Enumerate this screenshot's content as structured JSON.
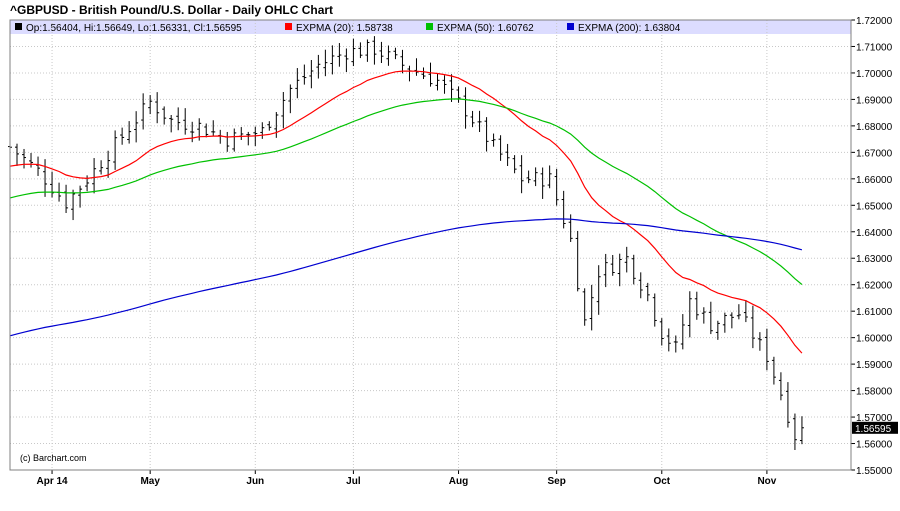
{
  "chart_data": {
    "type": "ohlc",
    "title": "^GBPUSD - British Pound/U.S. Dollar - Daily OHLC Chart",
    "credit": "(c) Barchart.com",
    "legend": {
      "ohlc": "Op:1.56404, Hi:1.56649, Lo:1.56331, Cl:1.56595",
      "series": [
        {
          "label": "EXPMA (20): 1.58738",
          "color": "#ff0000"
        },
        {
          "label": "EXPMA (50): 1.60762",
          "color": "#00c000"
        },
        {
          "label": "EXPMA (200): 1.63804",
          "color": "#0000d0"
        }
      ]
    },
    "last_price_label": "1.56595",
    "last_price": 1.56595,
    "ylim": [
      1.55,
      1.72
    ],
    "yticks": [
      "1.55000",
      "1.56000",
      "1.57000",
      "1.58000",
      "1.59000",
      "1.60000",
      "1.61000",
      "1.62000",
      "1.63000",
      "1.64000",
      "1.65000",
      "1.66000",
      "1.67000",
      "1.68000",
      "1.69000",
      "1.70000",
      "1.71000",
      "1.72000"
    ],
    "xticks": [
      {
        "label": "Apr 14",
        "day": 6
      },
      {
        "label": "May",
        "day": 20
      },
      {
        "label": "Jun",
        "day": 35
      },
      {
        "label": "Jul",
        "day": 49
      },
      {
        "label": "Aug",
        "day": 64
      },
      {
        "label": "Sep",
        "day": 78
      },
      {
        "label": "Oct",
        "day": 93
      },
      {
        "label": "Nov",
        "day": 108
      }
    ],
    "x_range": [
      0,
      120
    ],
    "grid": true,
    "colors": {
      "bars": "#000000",
      "ema20": "#ff0000",
      "ema50": "#00c000",
      "ema200": "#0000d0",
      "legend_bg": "#dcdcff"
    }
  }
}
